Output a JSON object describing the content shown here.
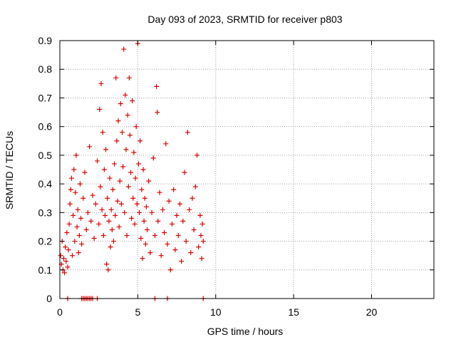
{
  "chart_data": {
    "type": "scatter",
    "title": "Day 093 of 2023, SRMTID for receiver p803",
    "xlabel": "GPS time / hours",
    "ylabel": "SRMTID / TECUs",
    "xlim": [
      0,
      24
    ],
    "ylim": [
      0,
      0.9
    ],
    "xticks": [
      0,
      5,
      10,
      15,
      20
    ],
    "xtick_labels": [
      "0",
      "5",
      "10",
      "15",
      "20"
    ],
    "yticks": [
      0,
      0.1,
      0.2,
      0.3,
      0.4,
      0.5,
      0.6,
      0.7,
      0.8,
      0.9
    ],
    "ytick_labels": [
      "0",
      "0.1",
      "0.2",
      "0.3",
      "0.4",
      "0.5",
      "0.6",
      "0.7",
      "0.8",
      "0.9"
    ],
    "grid": true,
    "marker": "+",
    "colors": {
      "series": "#dd0000",
      "axis": "#000000",
      "grid": "#a0a0a0",
      "background": "#ffffff"
    },
    "series": [
      {
        "name": "SRMTID",
        "points": [
          [
            0.05,
            0.15
          ],
          [
            0.1,
            0.12
          ],
          [
            0.15,
            0.2
          ],
          [
            0.2,
            0.1
          ],
          [
            0.25,
            0.14
          ],
          [
            0.3,
            0.09
          ],
          [
            0.35,
            0.18
          ],
          [
            0.4,
            0.13
          ],
          [
            0.45,
            0.23
          ],
          [
            0.5,
            0.11
          ],
          [
            0.55,
            0.17
          ],
          [
            0.6,
            0.26
          ],
          [
            0.65,
            0.33
          ],
          [
            0.7,
            0.38
          ],
          [
            0.75,
            0.42
          ],
          [
            0.8,
            0.15
          ],
          [
            0.85,
            0.29
          ],
          [
            0.9,
            0.45
          ],
          [
            0.95,
            0.2
          ],
          [
            1.0,
            0.37
          ],
          [
            1.05,
            0.5
          ],
          [
            1.1,
            0.25
          ],
          [
            1.15,
            0.31
          ],
          [
            1.2,
            0.16
          ],
          [
            1.25,
            0.22
          ],
          [
            1.3,
            0.4
          ],
          [
            1.35,
            0.28
          ],
          [
            1.4,
            0.19
          ],
          [
            1.5,
            0.35
          ],
          [
            1.6,
            0.44
          ],
          [
            1.7,
            0.24
          ],
          [
            1.8,
            0.3
          ],
          [
            1.9,
            0.53
          ],
          [
            2.0,
            0.27
          ],
          [
            2.1,
            0.36
          ],
          [
            2.2,
            0.21
          ],
          [
            2.3,
            0.33
          ],
          [
            2.4,
            0.48
          ],
          [
            2.5,
            0.26
          ],
          [
            2.55,
            0.66
          ],
          [
            2.6,
            0.39
          ],
          [
            2.65,
            0.75
          ],
          [
            2.7,
            0.31
          ],
          [
            2.75,
            0.58
          ],
          [
            2.8,
            0.22
          ],
          [
            2.85,
            0.45
          ],
          [
            2.9,
            0.29
          ],
          [
            2.95,
            0.52
          ],
          [
            3.0,
            0.12
          ],
          [
            3.05,
            0.35
          ],
          [
            3.1,
            0.1
          ],
          [
            3.15,
            0.27
          ],
          [
            3.2,
            0.42
          ],
          [
            3.25,
            0.18
          ],
          [
            3.3,
            0.31
          ],
          [
            3.35,
            0.24
          ],
          [
            3.4,
            0.38
          ],
          [
            3.45,
            0.2
          ],
          [
            3.5,
            0.47
          ],
          [
            3.55,
            0.29
          ],
          [
            3.6,
            0.77
          ],
          [
            3.65,
            0.55
          ],
          [
            3.7,
            0.34
          ],
          [
            3.75,
            0.62
          ],
          [
            3.8,
            0.25
          ],
          [
            3.85,
            0.41
          ],
          [
            3.9,
            0.68
          ],
          [
            3.95,
            0.33
          ],
          [
            4.0,
            0.58
          ],
          [
            4.05,
            0.46
          ],
          [
            4.1,
            0.87
          ],
          [
            4.15,
            0.3
          ],
          [
            4.2,
            0.71
          ],
          [
            4.25,
            0.52
          ],
          [
            4.3,
            0.22
          ],
          [
            4.35,
            0.64
          ],
          [
            4.4,
            0.39
          ],
          [
            4.45,
            0.77
          ],
          [
            4.5,
            0.57
          ],
          [
            4.55,
            0.44
          ],
          [
            4.6,
            0.28
          ],
          [
            4.65,
            0.69
          ],
          [
            4.7,
            0.35
          ],
          [
            4.75,
            0.51
          ],
          [
            4.8,
            0.26
          ],
          [
            4.85,
            0.42
          ],
          [
            4.9,
            0.6
          ],
          [
            4.95,
            0.33
          ],
          [
            5.0,
            0.89
          ],
          [
            5.05,
            0.47
          ],
          [
            5.1,
            0.3
          ],
          [
            5.15,
            0.55
          ],
          [
            5.2,
            0.21
          ],
          [
            5.25,
            0.38
          ],
          [
            5.3,
            0.14
          ],
          [
            5.35,
            0.45
          ],
          [
            5.4,
            0.27
          ],
          [
            5.45,
            0.35
          ],
          [
            5.5,
            0.19
          ],
          [
            5.55,
            0.32
          ],
          [
            5.6,
            0.24
          ],
          [
            5.7,
            0.41
          ],
          [
            5.8,
            0.16
          ],
          [
            5.9,
            0.3
          ],
          [
            6.0,
            0.49
          ],
          [
            6.1,
            0.22
          ],
          [
            6.2,
            0.74
          ],
          [
            6.25,
            0.65
          ],
          [
            6.3,
            0.27
          ],
          [
            6.4,
            0.37
          ],
          [
            6.5,
            0.15
          ],
          [
            6.6,
            0.31
          ],
          [
            6.7,
            0.23
          ],
          [
            6.8,
            0.54
          ],
          [
            6.9,
            0.19
          ],
          [
            7.0,
            0.34
          ],
          [
            7.1,
            0.1
          ],
          [
            7.2,
            0.26
          ],
          [
            7.3,
            0.38
          ],
          [
            7.4,
            0.17
          ],
          [
            7.5,
            0.29
          ],
          [
            7.6,
            0.22
          ],
          [
            7.7,
            0.33
          ],
          [
            7.8,
            0.13
          ],
          [
            7.9,
            0.27
          ],
          [
            8.0,
            0.44
          ],
          [
            8.1,
            0.2
          ],
          [
            8.2,
            0.58
          ],
          [
            8.3,
            0.31
          ],
          [
            8.4,
            0.16
          ],
          [
            8.5,
            0.35
          ],
          [
            8.6,
            0.24
          ],
          [
            8.7,
            0.39
          ],
          [
            8.8,
            0.5
          ],
          [
            8.9,
            0.18
          ],
          [
            9.0,
            0.29
          ],
          [
            9.05,
            0.22
          ],
          [
            9.1,
            0.14
          ],
          [
            9.15,
            0.26
          ],
          [
            9.2,
            0.2
          ],
          [
            0.5,
            0.0
          ],
          [
            1.4,
            0.0
          ],
          [
            1.5,
            0.0
          ],
          [
            1.6,
            0.0
          ],
          [
            1.7,
            0.0
          ],
          [
            1.8,
            0.0
          ],
          [
            1.9,
            0.0
          ],
          [
            2.0,
            0.0
          ],
          [
            2.1,
            0.0
          ],
          [
            2.4,
            0.0
          ],
          [
            6.1,
            0.0
          ],
          [
            6.9,
            0.0
          ],
          [
            9.2,
            0.0
          ]
        ]
      }
    ]
  }
}
